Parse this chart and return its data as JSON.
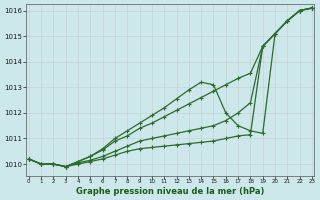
{
  "x": [
    0,
    1,
    2,
    3,
    4,
    5,
    6,
    7,
    8,
    9,
    10,
    11,
    12,
    13,
    14,
    15,
    16,
    17,
    18,
    19,
    20,
    21,
    22,
    23
  ],
  "series1": [
    1010.2,
    1010.0,
    1010.0,
    1009.9,
    1010.0,
    1010.1,
    1010.2,
    1010.35,
    1010.5,
    1010.6,
    1010.65,
    1010.7,
    1010.75,
    1010.8,
    1010.85,
    1010.9,
    1011.0,
    1011.1,
    1011.15,
    1014.6,
    1015.1,
    1015.6,
    1016.0,
    1016.1
  ],
  "series2": [
    1010.2,
    1010.0,
    1010.0,
    1009.9,
    1010.05,
    1010.15,
    1010.3,
    1010.5,
    1010.7,
    1010.9,
    1011.0,
    1011.1,
    1011.2,
    1011.3,
    1011.4,
    1011.5,
    1011.7,
    1012.0,
    1012.4,
    1014.6,
    1015.1,
    1015.6,
    1016.0,
    1016.1
  ],
  "series3": [
    1010.2,
    1010.0,
    1010.0,
    1009.9,
    1010.1,
    1010.3,
    1010.55,
    1010.9,
    1011.1,
    1011.4,
    1011.6,
    1011.85,
    1012.1,
    1012.35,
    1012.6,
    1012.85,
    1013.1,
    1013.35,
    1013.55,
    1014.6,
    1015.1,
    1015.6,
    1016.0,
    1016.1
  ],
  "series4": [
    1010.2,
    1010.0,
    1010.0,
    1009.9,
    1010.1,
    1010.3,
    1010.6,
    1011.0,
    1011.3,
    1011.6,
    1011.9,
    1012.2,
    1012.55,
    1012.9,
    1013.2,
    1013.1,
    1012.0,
    1011.5,
    1011.3,
    1011.2,
    1015.1,
    1015.6,
    1016.0,
    1016.1
  ],
  "xlabel": "Graphe pression niveau de la mer (hPa)",
  "yticks": [
    1010,
    1011,
    1012,
    1013,
    1014,
    1015,
    1016
  ],
  "xticks": [
    0,
    1,
    2,
    3,
    4,
    5,
    6,
    7,
    8,
    9,
    10,
    11,
    12,
    13,
    14,
    15,
    16,
    17,
    18,
    19,
    20,
    21,
    22,
    23
  ],
  "ylim": [
    1009.55,
    1016.25
  ],
  "xlim": [
    -0.2,
    23.2
  ],
  "line_color": "#2d6a2d",
  "marker_color": "#2d6a2d",
  "bg_color": "#cce8ea",
  "grid_color": "#b8d8d8",
  "xlabel_color": "#1a5c1a"
}
